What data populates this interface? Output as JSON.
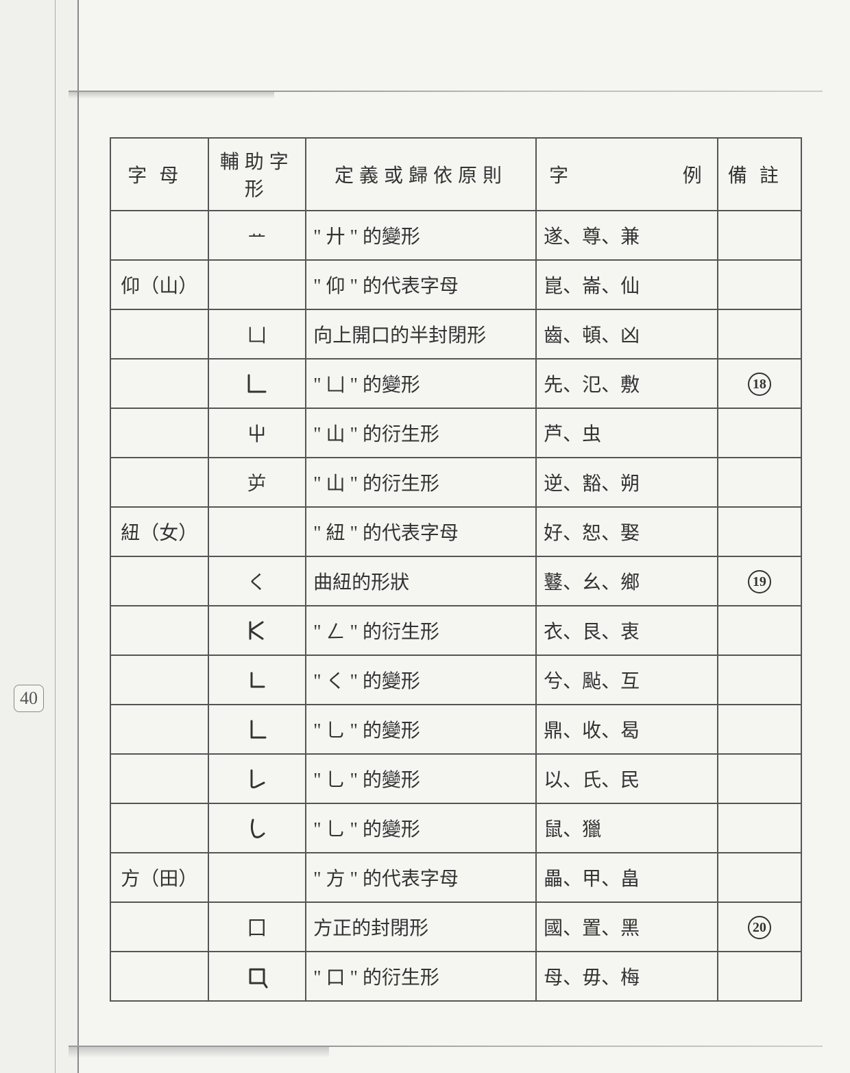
{
  "page_number": "40",
  "headers": {
    "zimu": "字母",
    "fuzhu": "輔助字形",
    "definition": "定義或歸依原則",
    "example_left": "字",
    "example_right": "例",
    "note": "備註"
  },
  "rows": [
    {
      "zimu": "",
      "fuzhu": "ᅭ",
      "definition": "\" 廾 \" 的變形",
      "example": "遂、尊、兼",
      "note": ""
    },
    {
      "zimu": "仰（山）",
      "fuzhu": "",
      "definition": "\" 仰 \" 的代表字母",
      "example": "崑、崙、仙",
      "note": ""
    },
    {
      "zimu": "",
      "fuzhu": "凵",
      "definition": "向上開口的半封閉形",
      "example": "齒、頓、凶",
      "note": ""
    },
    {
      "zimu": "",
      "fuzhu": "glyph:L_open",
      "definition": "\" 凵 \" 的變形",
      "example": "先、氾、敷",
      "note": "circled:18"
    },
    {
      "zimu": "",
      "fuzhu": "屮",
      "definition": "\" 山 \" 的衍生形",
      "example": "芦、虫",
      "note": ""
    },
    {
      "zimu": "",
      "fuzhu": "屰",
      "definition": "\" 山 \" 的衍生形",
      "example": "逆、豁、朔",
      "note": ""
    },
    {
      "zimu": "紐（女）",
      "fuzhu": "",
      "definition": "\" 紐 \" 的代表字母",
      "example": "好、恕、娶",
      "note": ""
    },
    {
      "zimu": "",
      "fuzhu": "く",
      "definition": "曲紐的形狀",
      "example": "鼟、幺、鄉",
      "note": "circled:19"
    },
    {
      "zimu": "",
      "fuzhu": "glyph:K_variant",
      "definition": "\" ㄥ \" 的衍生形",
      "example": "衣、艮、衷",
      "note": ""
    },
    {
      "zimu": "",
      "fuzhu": "glyph:L_corner",
      "definition": "\" く \" 的變形",
      "example": "兮、颭、互",
      "note": ""
    },
    {
      "zimu": "",
      "fuzhu": "glyph:L_shape",
      "definition": "\" 乚 \" 的變形",
      "example": "鼎、收、曷",
      "note": ""
    },
    {
      "zimu": "",
      "fuzhu": "glyph:L_hook",
      "definition": "\" 乚 \" 的變形",
      "example": "以、氏、民",
      "note": ""
    },
    {
      "zimu": "",
      "fuzhu": "glyph:L_curve",
      "definition": "\" 乚 \" 的變形",
      "example": "鼠、獵",
      "note": ""
    },
    {
      "zimu": "方（田）",
      "fuzhu": "",
      "definition": "\" 方 \" 的代表字母",
      "example": "畾、甲、畠",
      "note": ""
    },
    {
      "zimu": "",
      "fuzhu": "囗",
      "definition": "方正的封閉形",
      "example": "國、置、黑",
      "note": "circled:20"
    },
    {
      "zimu": "",
      "fuzhu": "glyph:box_hook",
      "definition": "\" 口 \" 的衍生形",
      "example": "母、毋、梅",
      "note": ""
    }
  ],
  "colors": {
    "page_bg": "#f5f5f2",
    "border": "#555555",
    "text": "#333333",
    "rule": "#999999"
  }
}
